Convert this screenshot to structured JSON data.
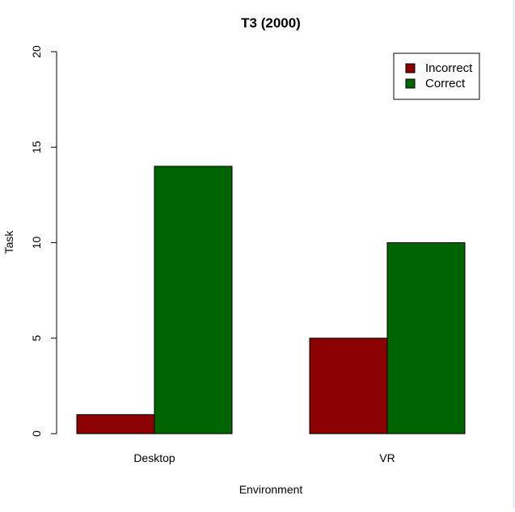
{
  "chart_data": {
    "type": "bar",
    "title": "T3 (2000)",
    "xlabel": "Environment",
    "ylabel": "Task",
    "categories": [
      "Desktop",
      "VR"
    ],
    "series": [
      {
        "name": "Incorrect",
        "values": [
          1,
          5
        ],
        "color": "#8b0000"
      },
      {
        "name": "Correct",
        "values": [
          14,
          10
        ],
        "color": "#006400"
      }
    ],
    "ylim": [
      0,
      20
    ],
    "yticks": [
      "0",
      "5",
      "10",
      "15",
      "20"
    ],
    "grid": false,
    "legend_position": "top-right"
  }
}
